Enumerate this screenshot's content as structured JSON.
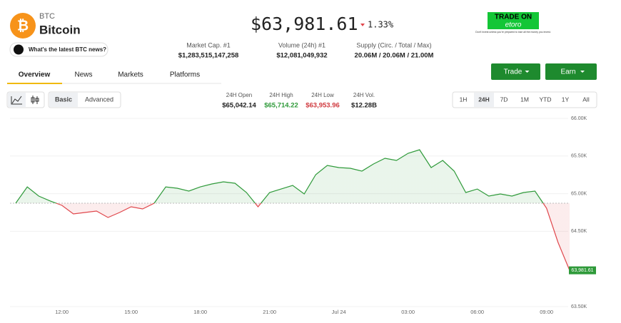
{
  "header": {
    "symbol": "BTC",
    "name": "Bitcoin",
    "price": "$63,981.61",
    "change": "1.33%",
    "news_button": "What's the latest BTC news?"
  },
  "stats": [
    {
      "label": "Market Cap. #1",
      "value": "$1,283,515,147,258"
    },
    {
      "label": "Volume (24h) #1",
      "value": "$12,081,049,932"
    },
    {
      "label": "Supply (Circ. / Total / Max)",
      "value": "20.06M / 20.06M / 21.00M"
    }
  ],
  "ad": {
    "title": "TRADE ON",
    "brand": "etoro",
    "disclaimer": "Don't invest unless you're prepared to lose all the money you invest."
  },
  "actions": [
    "Trade",
    "Earn"
  ],
  "tabs": [
    "Overview",
    "News",
    "Markets",
    "Platforms"
  ],
  "chart_modes": [
    "Basic",
    "Advanced"
  ],
  "summary": [
    {
      "label": "24H Open",
      "value": "$65,042.14"
    },
    {
      "label": "24H High",
      "value": "$65,714.22"
    },
    {
      "label": "24H Low",
      "value": "$63,953.96"
    },
    {
      "label": "24H Vol.",
      "value": "$12.28B"
    }
  ],
  "ranges": [
    "1H",
    "24H",
    "7D",
    "1M",
    "YTD",
    "1Y",
    "All"
  ],
  "chart_data": {
    "type": "line",
    "categories": [
      null,
      null,
      null,
      null,
      "12:00",
      null,
      null,
      null,
      null,
      null,
      "15:00",
      null,
      null,
      null,
      null,
      null,
      "18:00",
      null,
      null,
      null,
      null,
      null,
      "21:00",
      null,
      null,
      null,
      null,
      null,
      "Jul 24",
      null,
      null,
      null,
      null,
      null,
      "03:00",
      null,
      null,
      null,
      null,
      null,
      "06:00",
      null,
      null,
      null,
      null,
      null,
      "09:00",
      null,
      null
    ],
    "values": [
      64873,
      65090,
      64968,
      64902,
      64845,
      64731,
      64750,
      64769,
      64684,
      64750,
      64826,
      64797,
      64873,
      65090,
      65072,
      65034,
      65090,
      65129,
      65157,
      65138,
      65015,
      64826,
      65015,
      65062,
      65110,
      64996,
      65252,
      65375,
      65347,
      65337,
      65299,
      65394,
      65470,
      65441,
      65536,
      65583,
      65347,
      65441,
      65299,
      65015,
      65062,
      64968,
      64996,
      64968,
      65015,
      65034,
      64807,
      64352,
      63981.61
    ],
    "value_labels": [
      null,
      null,
      null,
      null,
      null,
      null,
      null,
      null,
      null,
      null,
      null,
      null,
      null,
      null,
      null,
      null,
      null,
      null,
      null,
      null,
      null,
      null,
      null,
      null,
      null,
      null,
      null,
      null,
      null,
      null,
      null,
      null,
      null,
      null,
      null,
      null,
      null,
      null,
      null,
      null,
      null,
      null,
      null,
      null,
      null,
      null,
      null,
      null,
      "63,981.61"
    ],
    "up_color": "#2f9a3a",
    "down_color": "#e0474c",
    "ylim": [
      63500,
      66000
    ],
    "yticks": [
      {
        "value": 66000,
        "label": "66.00K"
      },
      {
        "value": 65500,
        "label": "65.50K"
      },
      {
        "value": 65000,
        "label": "65.00K"
      },
      {
        "value": 64500,
        "label": "64.50K"
      },
      {
        "value": 63500,
        "label": "63.50K"
      }
    ],
    "grid": true
  }
}
